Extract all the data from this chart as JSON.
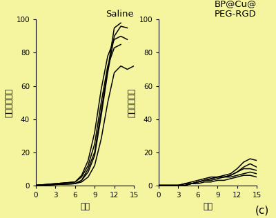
{
  "background_color": "#f5f5a0",
  "title1": "Saline",
  "title2": "BP@Cu@\nPEG-RGD",
  "xlabel": "日数",
  "ylabel": "腫瘍相対体積",
  "xticks": [
    0,
    3,
    6,
    9,
    12,
    15
  ],
  "yticks": [
    0,
    20,
    40,
    60,
    80,
    100
  ],
  "ylim": [
    0,
    105
  ],
  "xlim": [
    0,
    15
  ],
  "label_c": "(c)",
  "saline_lines": [
    {
      "x": [
        0,
        6,
        7,
        8,
        9,
        10,
        11,
        12,
        13
      ],
      "y": [
        0,
        1,
        3,
        10,
        20,
        45,
        70,
        95,
        98
      ]
    },
    {
      "x": [
        0,
        6,
        7,
        8,
        9,
        10,
        11,
        12,
        13,
        14
      ],
      "y": [
        0,
        1,
        3,
        8,
        18,
        42,
        68,
        90,
        96,
        95
      ]
    },
    {
      "x": [
        0,
        6,
        7,
        8,
        9,
        10,
        11,
        12,
        13
      ],
      "y": [
        0,
        2,
        5,
        12,
        25,
        50,
        72,
        83,
        85
      ]
    },
    {
      "x": [
        0,
        6,
        7,
        8,
        9,
        10,
        11,
        12,
        13,
        14,
        15
      ],
      "y": [
        0,
        1,
        2,
        5,
        12,
        28,
        50,
        68,
        72,
        70,
        72
      ]
    },
    {
      "x": [
        0,
        6,
        7,
        8,
        9,
        10,
        11,
        12,
        13,
        14
      ],
      "y": [
        0,
        2,
        6,
        15,
        32,
        58,
        78,
        88,
        90,
        88
      ]
    }
  ],
  "bp_lines": [
    {
      "x": [
        0,
        3,
        4,
        5,
        6,
        7,
        8,
        9,
        10,
        11,
        12,
        13,
        14,
        15
      ],
      "y": [
        0,
        0,
        0,
        1,
        2,
        3,
        4,
        5,
        6,
        7,
        10,
        14,
        16,
        15
      ]
    },
    {
      "x": [
        0,
        3,
        4,
        5,
        6,
        7,
        8,
        9,
        10,
        11,
        12,
        13,
        14,
        15
      ],
      "y": [
        0,
        0,
        0,
        1,
        2,
        3,
        3,
        4,
        5,
        6,
        8,
        11,
        13,
        11
      ]
    },
    {
      "x": [
        0,
        3,
        4,
        5,
        6,
        7,
        8,
        9,
        10,
        11,
        12,
        13,
        14,
        15
      ],
      "y": [
        0,
        0,
        1,
        2,
        3,
        4,
        5,
        5,
        5,
        5,
        6,
        7,
        8,
        7
      ]
    },
    {
      "x": [
        0,
        3,
        4,
        5,
        6,
        7,
        8,
        9,
        10,
        11,
        12,
        13,
        14,
        15
      ],
      "y": [
        0,
        0,
        0,
        1,
        1,
        2,
        2,
        3,
        3,
        4,
        5,
        6,
        6,
        5
      ]
    },
    {
      "x": [
        0,
        3,
        4,
        5,
        6,
        7,
        8,
        9,
        10,
        11,
        12,
        13,
        14,
        15
      ],
      "y": [
        0,
        0,
        1,
        1,
        2,
        3,
        4,
        5,
        5,
        6,
        8,
        10,
        10,
        9
      ]
    }
  ],
  "line_color": "#000000",
  "line_width": 1.1,
  "tick_fontsize": 7.5,
  "label_fontsize": 8.5,
  "title_fontsize": 9.5
}
